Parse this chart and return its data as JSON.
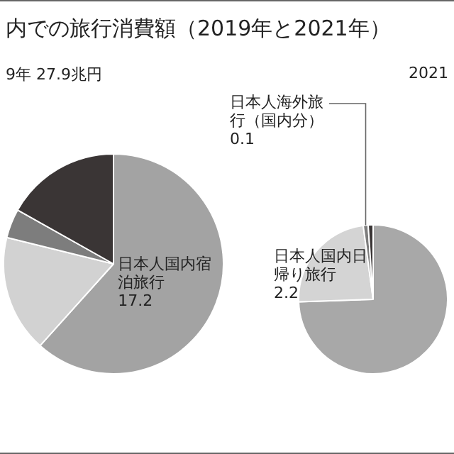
{
  "chart_data": [
    {
      "type": "pie",
      "title": "内での旅行消費額（2019年と2021年）",
      "subtitle": "9年 27.9兆円",
      "categories": [
        "日本人国内宿泊旅行",
        null,
        null,
        null
      ],
      "values": [
        17.2,
        4.8,
        1.2,
        4.7
      ],
      "colors": [
        "#a3a3a3",
        "#d2d2d2",
        "#7d7d7d",
        "#3a3535"
      ],
      "value_labels": [
        "17.2",
        null,
        null,
        null
      ]
    },
    {
      "type": "pie",
      "title": "2021",
      "categories": [
        null,
        "日本人国内日帰り旅行",
        "日本人海外旅行（国内分）",
        null
      ],
      "values": [
        7.0,
        2.2,
        0.1,
        0.1
      ],
      "colors": [
        "#a8a8a8",
        "#d4d4d4",
        "#7d7d7d",
        "#3a3535"
      ],
      "value_labels": [
        null,
        "2.2",
        "0.1",
        null
      ]
    }
  ]
}
